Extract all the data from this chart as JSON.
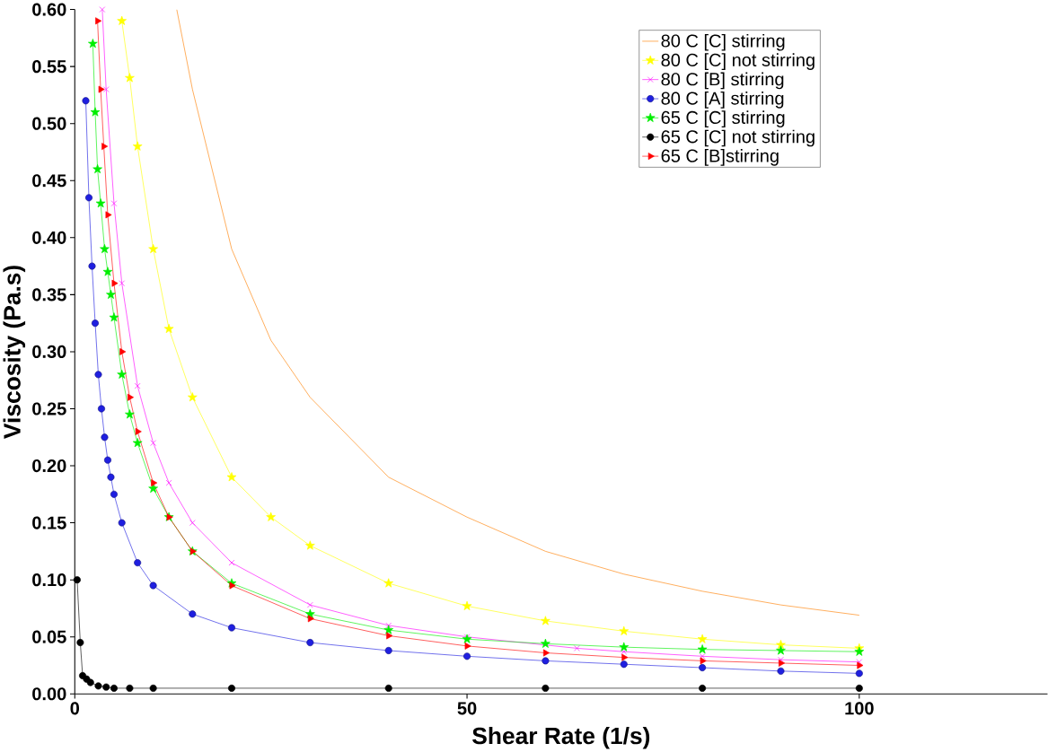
{
  "chart_data": {
    "type": "line",
    "xlabel": "Shear Rate (1/s)",
    "ylabel": "Viscosity (Pa.s)",
    "xlim": [
      0,
      124
    ],
    "ylim": [
      0,
      0.6
    ],
    "xticks": [
      0,
      50,
      100
    ],
    "yticks": [
      {
        "value": 0,
        "label": "0.00"
      },
      {
        "value": 0.05,
        "label": "0.05"
      },
      {
        "value": 0.1,
        "label": "0.10"
      },
      {
        "value": 0.15,
        "label": "0.15"
      },
      {
        "value": 0.2,
        "label": "0.20"
      },
      {
        "value": 0.25,
        "label": "0.25"
      },
      {
        "value": 0.3,
        "label": "0.30"
      },
      {
        "value": 0.35,
        "label": "0.35"
      },
      {
        "value": 0.4,
        "label": "0.40"
      },
      {
        "value": 0.45,
        "label": "0.45"
      },
      {
        "value": 0.5,
        "label": "0.50"
      },
      {
        "value": 0.55,
        "label": "0.55"
      },
      {
        "value": 0.6,
        "label": "0.60"
      }
    ],
    "grid": false,
    "legend": "top right",
    "series": [
      {
        "name": "80 C [C] stirring",
        "color": "#ff7f00",
        "marker": "none",
        "x": [
          13,
          15,
          20,
          25,
          30,
          40,
          50,
          60,
          70,
          80,
          90,
          100
        ],
        "values": [
          0.6,
          0.53,
          0.39,
          0.31,
          0.26,
          0.19,
          0.155,
          0.125,
          0.105,
          0.09,
          0.078,
          0.069
        ]
      },
      {
        "name": "80 C [C] not stirring",
        "color": "#ffff00",
        "marker": "star",
        "x": [
          6,
          7,
          8,
          10,
          12,
          15,
          20,
          25,
          30,
          40,
          50,
          60,
          70,
          80,
          90,
          100
        ],
        "values": [
          0.59,
          0.54,
          0.48,
          0.39,
          0.32,
          0.26,
          0.19,
          0.155,
          0.13,
          0.097,
          0.077,
          0.064,
          0.055,
          0.048,
          0.043,
          0.04
        ]
      },
      {
        "name": "80 C [B] stirring",
        "color": "#ff00ff",
        "marker": "cross",
        "x": [
          3.5,
          4,
          5,
          6,
          8,
          10,
          12,
          15,
          20,
          30,
          40,
          50,
          64,
          70,
          80,
          90,
          100
        ],
        "values": [
          0.6,
          0.53,
          0.43,
          0.36,
          0.27,
          0.22,
          0.185,
          0.15,
          0.115,
          0.078,
          0.06,
          0.05,
          0.04,
          0.037,
          0.033,
          0.03,
          0.028
        ]
      },
      {
        "name": "80 C [A] stirring",
        "color": "#1f1fe0",
        "marker": "circle",
        "x": [
          1.4,
          1.8,
          2.2,
          2.6,
          3,
          3.4,
          3.8,
          4.2,
          4.6,
          5,
          6,
          8,
          10,
          15,
          20,
          30,
          40,
          50,
          60,
          70,
          80,
          90,
          100
        ],
        "values": [
          0.52,
          0.435,
          0.375,
          0.325,
          0.28,
          0.25,
          0.225,
          0.205,
          0.19,
          0.175,
          0.15,
          0.115,
          0.095,
          0.07,
          0.058,
          0.045,
          0.038,
          0.033,
          0.029,
          0.026,
          0.023,
          0.02,
          0.018
        ]
      },
      {
        "name": "65 C [C] stirring",
        "color": "#00ee00",
        "marker": "star",
        "x": [
          2.3,
          2.6,
          2.9,
          3.3,
          3.8,
          4.2,
          4.6,
          5,
          6,
          7,
          8,
          10,
          12,
          15,
          20,
          30,
          40,
          50,
          60,
          70,
          80,
          90,
          100
        ],
        "values": [
          0.57,
          0.51,
          0.46,
          0.43,
          0.39,
          0.37,
          0.35,
          0.33,
          0.28,
          0.245,
          0.22,
          0.18,
          0.155,
          0.125,
          0.097,
          0.07,
          0.056,
          0.048,
          0.044,
          0.041,
          0.039,
          0.038,
          0.037
        ]
      },
      {
        "name": "65 C [C] not stirring",
        "color": "#000000",
        "marker": "circle",
        "x": [
          0.3,
          0.7,
          1,
          1.5,
          2,
          3,
          4,
          5,
          7,
          10,
          20,
          40,
          60,
          80,
          100
        ],
        "values": [
          0.1,
          0.045,
          0.016,
          0.013,
          0.01,
          0.007,
          0.006,
          0.005,
          0.005,
          0.005,
          0.005,
          0.005,
          0.005,
          0.005,
          0.005
        ]
      },
      {
        "name": "65 C [B]stirring",
        "color": "#ff0000",
        "marker": "triangle",
        "x": [
          2.9,
          3.3,
          3.7,
          4.2,
          5,
          6,
          7,
          8,
          10,
          12,
          15,
          20,
          30,
          40,
          50,
          60,
          70,
          80,
          90,
          100
        ],
        "values": [
          0.59,
          0.53,
          0.48,
          0.42,
          0.36,
          0.3,
          0.26,
          0.23,
          0.185,
          0.155,
          0.125,
          0.095,
          0.066,
          0.051,
          0.042,
          0.036,
          0.032,
          0.029,
          0.027,
          0.025
        ]
      }
    ]
  }
}
